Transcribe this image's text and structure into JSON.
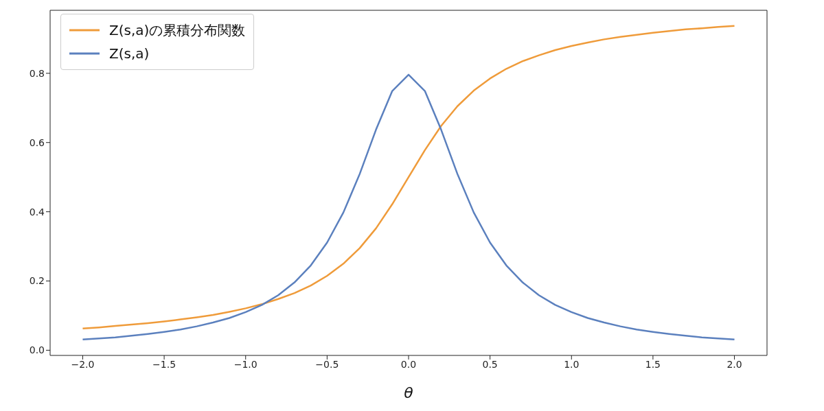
{
  "chart_data": {
    "type": "line",
    "xlabel": "θ",
    "x": [
      -2.0,
      -1.9,
      -1.8,
      -1.7,
      -1.6,
      -1.5,
      -1.4,
      -1.3,
      -1.2,
      -1.1,
      -1.0,
      -0.9,
      -0.8,
      -0.7,
      -0.6,
      -0.5,
      -0.4,
      -0.3,
      -0.2,
      -0.1,
      0.0,
      0.1,
      0.2,
      0.3,
      0.4,
      0.5,
      0.6,
      0.7,
      0.8,
      0.9,
      1.0,
      1.1,
      1.2,
      1.3,
      1.4,
      1.5,
      1.6,
      1.7,
      1.8,
      1.9,
      2.0
    ],
    "series": [
      {
        "name": "Z(s,a)の累積分布関数",
        "color": "#ef9b3a",
        "values": [
          0.063,
          0.066,
          0.07,
          0.074,
          0.078,
          0.083,
          0.089,
          0.095,
          0.102,
          0.111,
          0.121,
          0.133,
          0.148,
          0.165,
          0.187,
          0.215,
          0.25,
          0.295,
          0.352,
          0.422,
          0.5,
          0.578,
          0.648,
          0.705,
          0.75,
          0.785,
          0.813,
          0.835,
          0.852,
          0.867,
          0.879,
          0.889,
          0.898,
          0.905,
          0.911,
          0.917,
          0.922,
          0.927,
          0.93,
          0.934,
          0.937
        ]
      },
      {
        "name": "Z(s,a)",
        "color": "#5b80be",
        "values": [
          0.031,
          0.034,
          0.037,
          0.042,
          0.047,
          0.053,
          0.06,
          0.069,
          0.08,
          0.093,
          0.11,
          0.131,
          0.159,
          0.196,
          0.245,
          0.311,
          0.398,
          0.509,
          0.637,
          0.749,
          0.796,
          0.749,
          0.637,
          0.509,
          0.398,
          0.311,
          0.245,
          0.196,
          0.159,
          0.131,
          0.11,
          0.093,
          0.08,
          0.069,
          0.06,
          0.053,
          0.047,
          0.042,
          0.037,
          0.034,
          0.031
        ]
      }
    ],
    "xlim": [
      -2.2,
      2.2
    ],
    "ylim": [
      -0.015,
      0.982
    ],
    "xticks": [
      {
        "value": -2,
        "label": "−2.0"
      },
      {
        "value": -1.5,
        "label": "−1.5"
      },
      {
        "value": -1,
        "label": "−1.0"
      },
      {
        "value": -0.5,
        "label": "−0.5"
      },
      {
        "value": 0,
        "label": "0.0"
      },
      {
        "value": 0.5,
        "label": "0.5"
      },
      {
        "value": 1,
        "label": "1.0"
      },
      {
        "value": 1.5,
        "label": "1.5"
      },
      {
        "value": 2,
        "label": "2.0"
      }
    ],
    "yticks": [
      {
        "value": 0,
        "label": "0.0"
      },
      {
        "value": 0.2,
        "label": "0.2"
      },
      {
        "value": 0.4,
        "label": "0.4"
      },
      {
        "value": 0.6,
        "label": "0.6"
      },
      {
        "value": 0.8,
        "label": "0.8"
      }
    ],
    "legend": "top left",
    "grid": false,
    "marker": "none",
    "line_style": "solid"
  }
}
